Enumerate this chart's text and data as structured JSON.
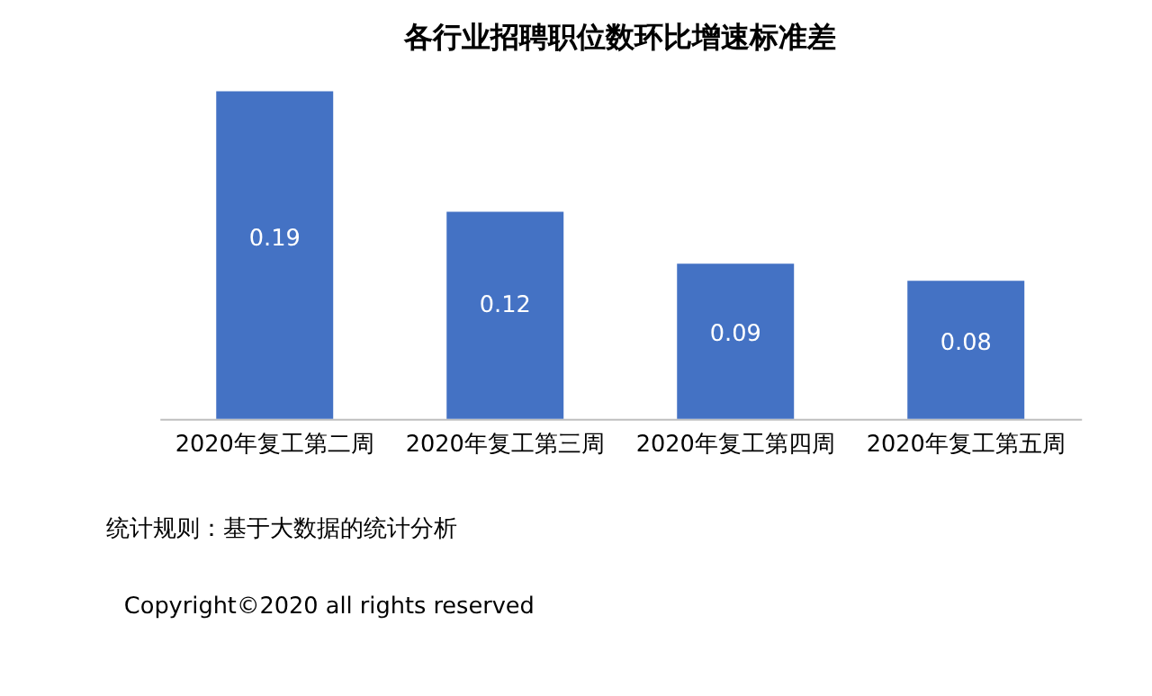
{
  "chart_data": {
    "type": "bar",
    "title": "各行业招聘职位数环比增速标准差",
    "categories": [
      "2020年复工第二周",
      "2020年复工第三周",
      "2020年复工第四周",
      "2020年复工第五周"
    ],
    "values": [
      0.19,
      0.12,
      0.09,
      0.08
    ],
    "color": "#4472c4",
    "data_labels": true,
    "grid": false,
    "annotations": [
      "统计规则：基于大数据的统计分析",
      "Copyright©2020 all rights reserved"
    ]
  }
}
